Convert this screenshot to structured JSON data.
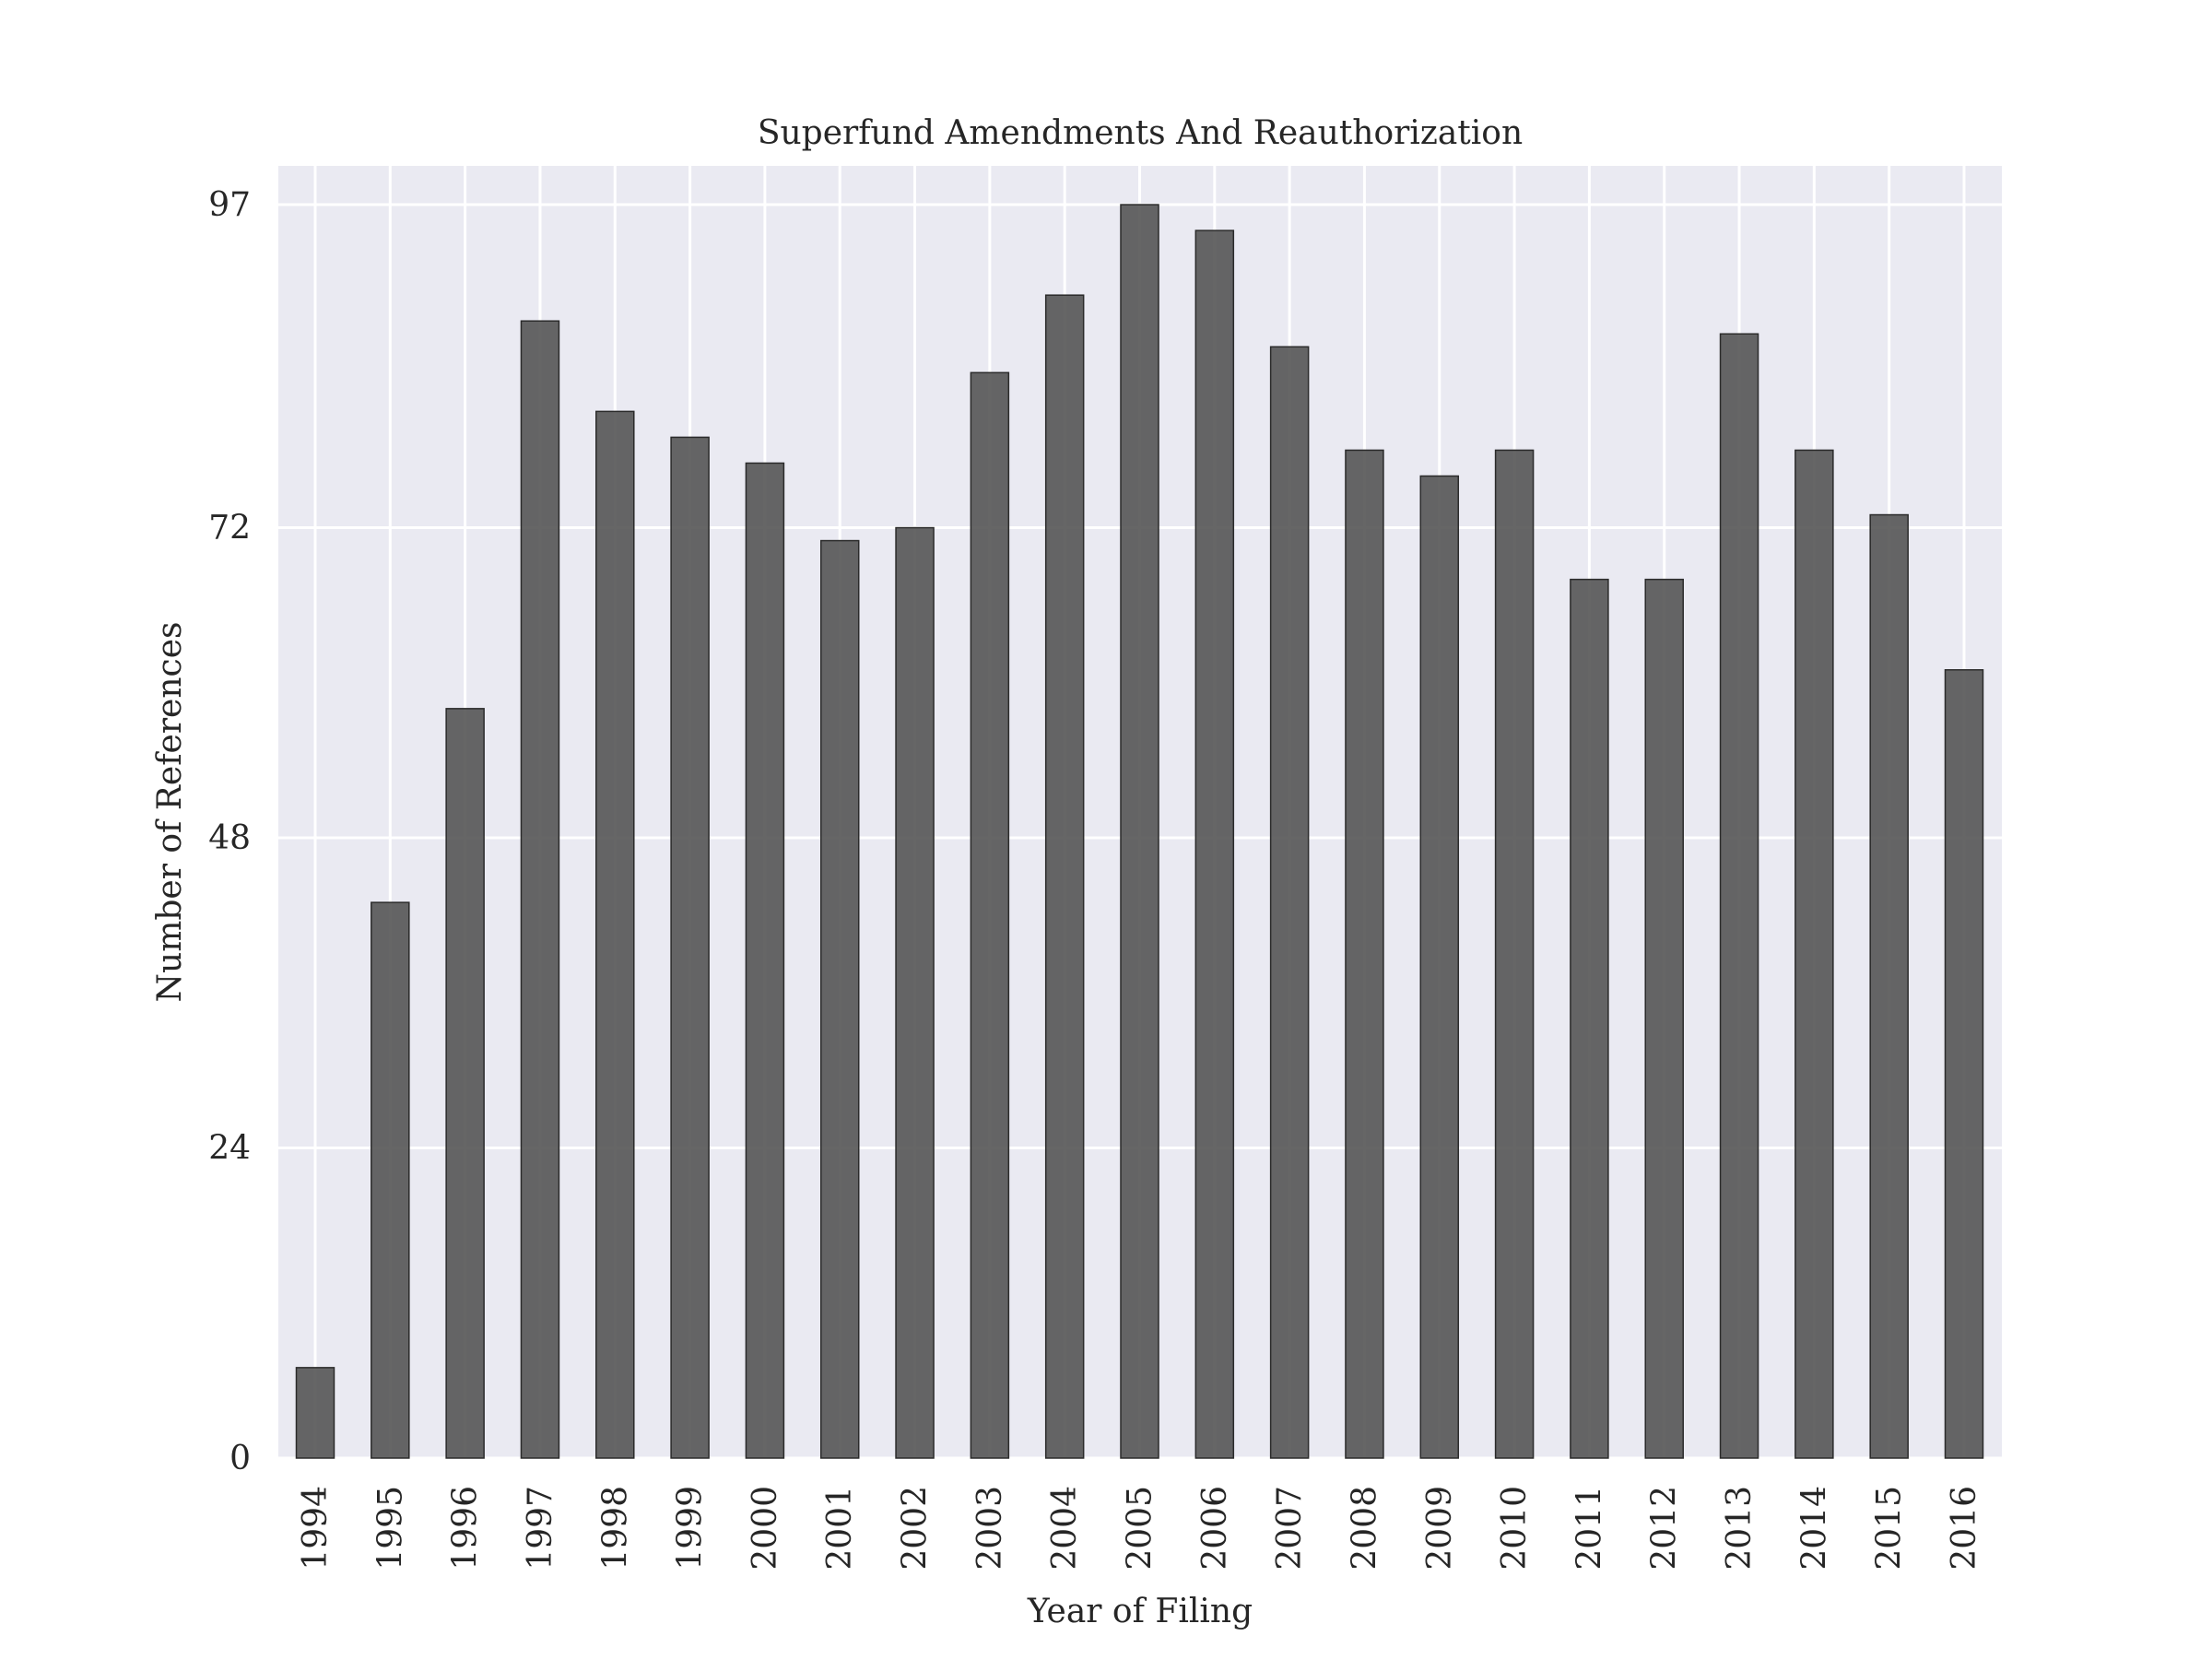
{
  "chart_data": {
    "type": "bar",
    "title": "Superfund Amendments And Reauthorization",
    "xlabel": "Year of Filing",
    "ylabel": "Number of References",
    "categories": [
      "1994",
      "1995",
      "1996",
      "1997",
      "1998",
      "1999",
      "2000",
      "2001",
      "2002",
      "2003",
      "2004",
      "2005",
      "2006",
      "2007",
      "2008",
      "2009",
      "2010",
      "2011",
      "2012",
      "2013",
      "2014",
      "2015",
      "2016"
    ],
    "values": [
      7,
      43,
      58,
      88,
      81,
      79,
      77,
      71,
      72,
      84,
      90,
      97,
      95,
      86,
      78,
      76,
      78,
      68,
      68,
      87,
      78,
      73,
      61
    ],
    "ylim": [
      0,
      100
    ],
    "yticks": [
      0,
      24,
      48,
      72,
      97
    ],
    "grid": true,
    "legend": "none",
    "colors": {
      "bar_fill": "#555555",
      "bar_edge": "#2b2b2b",
      "plot_background": "#eaeaf2",
      "grid": "#ffffff",
      "text": "#262626"
    }
  }
}
